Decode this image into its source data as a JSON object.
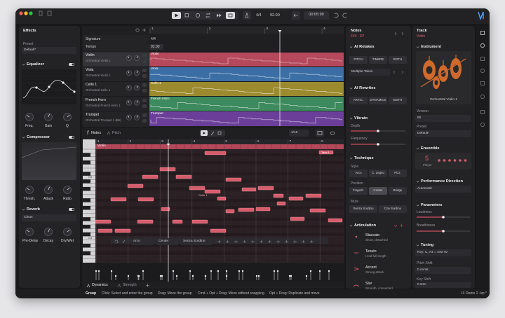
{
  "toolbar": {
    "signature": "4/4",
    "tempo": "92.00",
    "time": "00:05:99"
  },
  "effects": {
    "title": "Effects",
    "preset_label": "Preset",
    "preset": "Default*",
    "equalizer": {
      "title": "Equalizer",
      "knobs": [
        "Freq.",
        "Gain",
        "Q"
      ]
    },
    "compressor": {
      "title": "Compressor",
      "knobs": [
        "Thresh.",
        "Attack",
        "Ratio"
      ]
    },
    "reverb": {
      "title": "Reverb",
      "preset": "Clean",
      "knobs": [
        "Pre-Delay",
        "Decay",
        "Dry/Wet"
      ]
    }
  },
  "arrangement": {
    "ruler": [
      "1",
      "2",
      "3",
      "4"
    ],
    "signature_label": "Signature",
    "signature": "4/4",
    "tempo_label": "Tempo",
    "tempo": "92.00",
    "tracks": [
      {
        "name": "Violin",
        "instrument": "Orchestral Violin 1",
        "color": "#b5485b"
      },
      {
        "name": "Viola",
        "instrument": "Orchestral Violin 1",
        "color": "#3b6ea5"
      },
      {
        "name": "Cello 1",
        "instrument": "Orchestral Cello 1",
        "color": "#9c8a2e"
      },
      {
        "name": "French Horn",
        "instrument": "Orchestral French Horn 1",
        "color": "#3c8a5d"
      },
      {
        "name": "Trumpet",
        "instrument": "Orchestral Trumpet 1 (Bb)",
        "color": "#6b3f99"
      }
    ],
    "lanes": [
      "Violin",
      "Viola",
      "Cello 1",
      "French Horn",
      "Trumpet"
    ]
  },
  "editor": {
    "tabs": [
      "Notes",
      "Pitch"
    ],
    "grid": "1/16",
    "ruler": [
      "1",
      "2",
      "3",
      "4",
      "5",
      "6",
      "7",
      "8"
    ],
    "region": "Violin",
    "keys": [
      "C5",
      "C4"
    ],
    "note_labels": [
      "Take 1",
      "Cello 1"
    ],
    "toolbar": [
      "Arco",
      "Center",
      "Senza Sordino"
    ],
    "lower_tabs": [
      "Dynamics",
      "Strength"
    ]
  },
  "notes_panel": {
    "title": "Notes",
    "range": "F#4 - D7",
    "ai_retakes": {
      "title": "AI Retakes",
      "options": [
        "PITCH",
        "TIMBRE",
        "BOTH"
      ],
      "mode": "Multiple Takes"
    },
    "ai_rewrites": {
      "title": "AI Rewrites",
      "options": [
        "ARTIC.",
        "DYNAMICS",
        "BOTH"
      ]
    },
    "vibrato": {
      "title": "Vibrato",
      "params": [
        "Depth",
        "Frequency"
      ]
    },
    "technique": {
      "title": "Technique",
      "style_label": "Style",
      "style": [
        "Arco",
        "C. Legno",
        "Pizz."
      ],
      "position_label": "Position",
      "position": [
        "Fingerb.",
        "Center",
        "Bridge"
      ],
      "mute_label": "Mute",
      "mute": [
        "Senza Sordino",
        "Con Sordino"
      ]
    },
    "articulation": {
      "title": "Articulation",
      "items": [
        {
          "name": "Staccato",
          "desc": "Short, detached"
        },
        {
          "name": "Tenuto",
          "desc": "Hold full length"
        },
        {
          "name": "Accent",
          "desc": "Strong attack"
        },
        {
          "name": "Slur",
          "desc": "Smooth, connected"
        }
      ]
    }
  },
  "track_panel": {
    "title": "Track",
    "name": "Violin",
    "instrument_title": "Instrument",
    "instrument": "Orchestral Violin 1",
    "version_label": "Version",
    "version": "90",
    "preset_label": "Preset",
    "preset": "Default*",
    "ensemble_title": "Ensemble",
    "ensemble_count": "5",
    "ensemble_unit": "Player",
    "performance_title": "Performance Direction",
    "performance": "Automatic",
    "parameters_title": "Parameters",
    "parameters": [
      "Loudness",
      "Breathiness"
    ],
    "tuning_title": "Tuning",
    "tuning": "Key: C, A4 = 440 Hz",
    "pitch_shift_label": "Pitch Shift",
    "pitch_shift": "0 cents",
    "key_shift_label": "Key Shift",
    "key_shift": "0 smt."
  },
  "status": {
    "mode": "Group",
    "hints": [
      "Click: Select and enter the group",
      "Drag: Move the group",
      "Cmd + Opt + Drag: Move without snapping",
      "Opt + Drag: Duplicate and move"
    ],
    "file": "IX Demo 2 .lxp *"
  }
}
